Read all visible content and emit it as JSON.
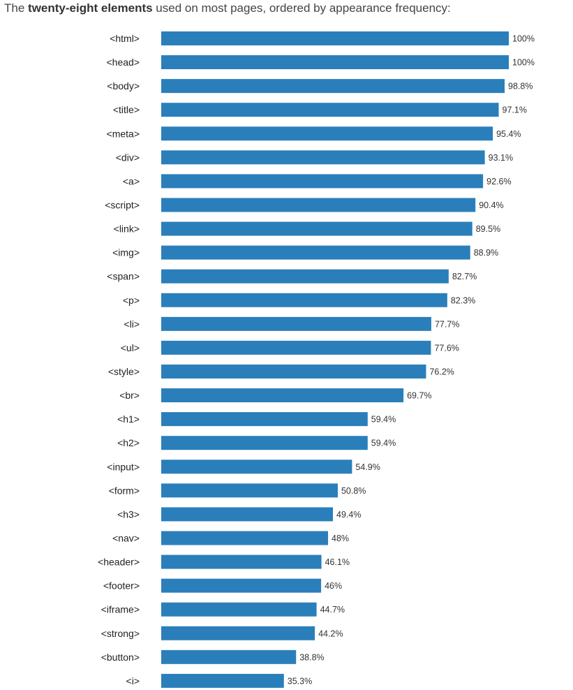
{
  "intro": {
    "prefix": "The ",
    "bold": "twenty-eight elements",
    "suffix": " used on most pages, ordered by appearance frequency:"
  },
  "chart_data": {
    "type": "bar",
    "orientation": "horizontal",
    "bar_color": "#2a7fba",
    "xlim": [
      0,
      100
    ],
    "categories": [
      "<html>",
      "<head>",
      "<body>",
      "<title>",
      "<meta>",
      "<div>",
      "<a>",
      "<script>",
      "<link>",
      "<img>",
      "<span>",
      "<p>",
      "<li>",
      "<ul>",
      "<style>",
      "<br>",
      "<h1>",
      "<h2>",
      "<input>",
      "<form>",
      "<h3>",
      "<nav>",
      "<header>",
      "<footer>",
      "<iframe>",
      "<strong>",
      "<button>",
      "<i>"
    ],
    "values": [
      100,
      100,
      98.8,
      97.1,
      95.4,
      93.1,
      92.6,
      90.4,
      89.5,
      88.9,
      82.7,
      82.3,
      77.7,
      77.6,
      76.2,
      69.7,
      59.4,
      59.4,
      54.9,
      50.8,
      49.4,
      48,
      46.1,
      46,
      44.7,
      44.2,
      38.8,
      35.3
    ],
    "value_labels": [
      "100%",
      "100%",
      "98.8%",
      "97.1%",
      "95.4%",
      "93.1%",
      "92.6%",
      "90.4%",
      "89.5%",
      "88.9%",
      "82.7%",
      "82.3%",
      "77.7%",
      "77.6%",
      "76.2%",
      "69.7%",
      "59.4%",
      "59.4%",
      "54.9%",
      "50.8%",
      "49.4%",
      "48%",
      "46.1%",
      "46%",
      "44.7%",
      "44.2%",
      "38.8%",
      "35.3%"
    ]
  }
}
